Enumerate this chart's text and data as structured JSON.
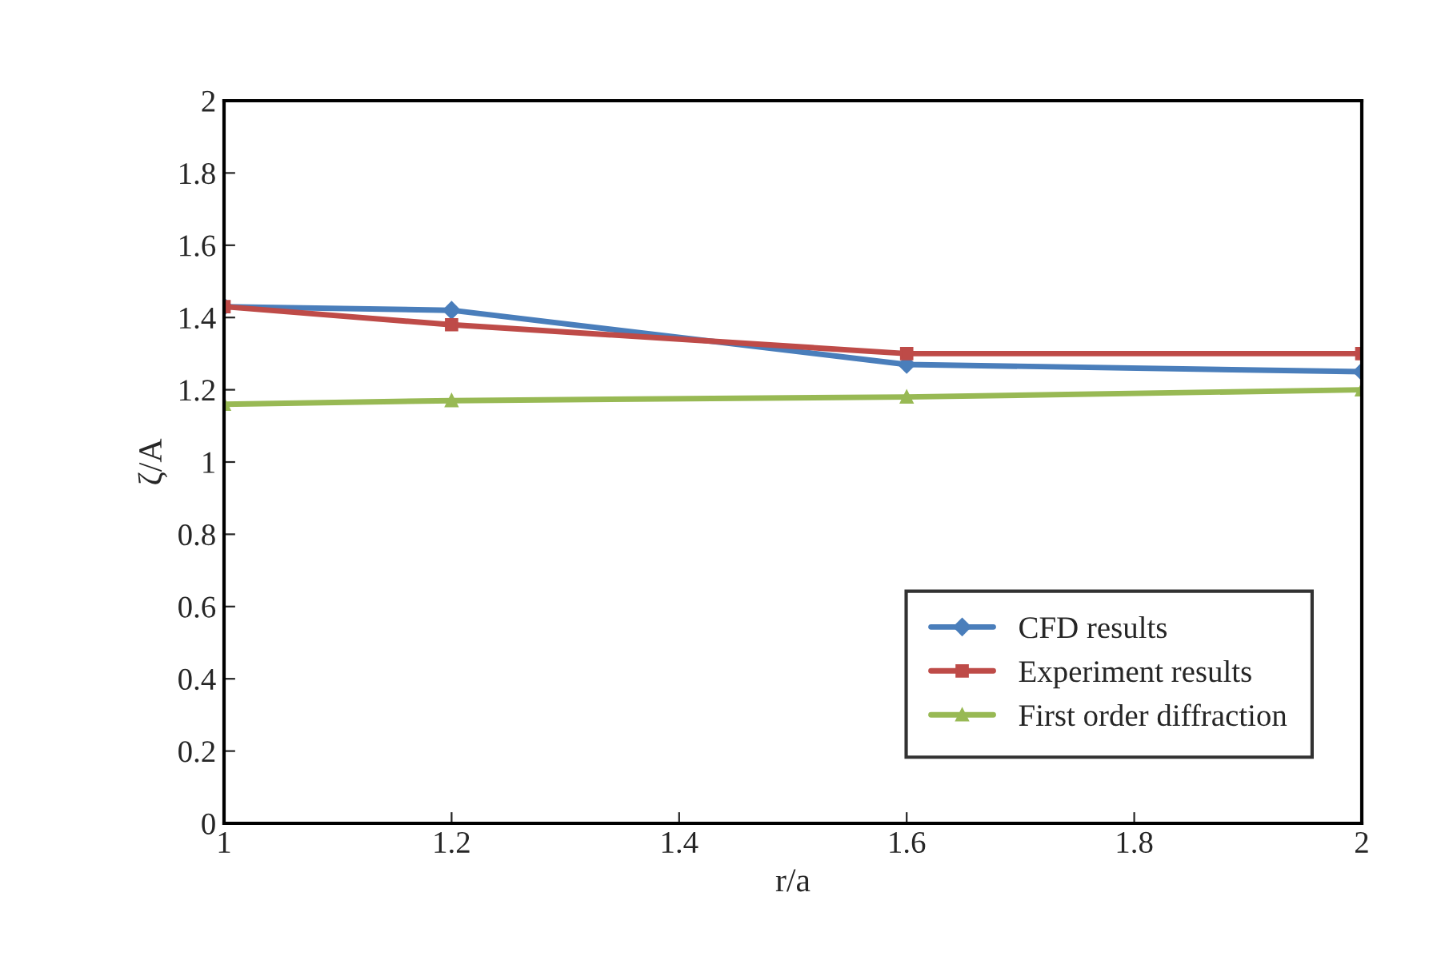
{
  "chart_data": {
    "type": "line",
    "xlabel": "r/a",
    "ylabel": "ζ/A",
    "x": [
      1,
      1.2,
      1.6,
      2
    ],
    "series": [
      {
        "name": "CFD results",
        "color": "#4a7ebb",
        "marker": "diamond",
        "values": [
          1.43,
          1.42,
          1.27,
          1.25
        ]
      },
      {
        "name": "Experiment results",
        "color": "#be4b48",
        "marker": "square",
        "values": [
          1.43,
          1.38,
          1.3,
          1.3
        ]
      },
      {
        "name": "First order diffraction",
        "color": "#98b954",
        "marker": "triangle",
        "values": [
          1.16,
          1.17,
          1.18,
          1.2
        ]
      }
    ],
    "xlim": [
      1,
      2
    ],
    "xticks": [
      1,
      1.2,
      1.4,
      1.6,
      1.8,
      2
    ],
    "ylim": [
      0,
      2
    ],
    "yticks": [
      0,
      0.2,
      0.4,
      0.6,
      0.8,
      1,
      1.2,
      1.4,
      1.6,
      1.8,
      2
    ],
    "grid": false,
    "legend": "bottom right",
    "line_style": "solid"
  }
}
